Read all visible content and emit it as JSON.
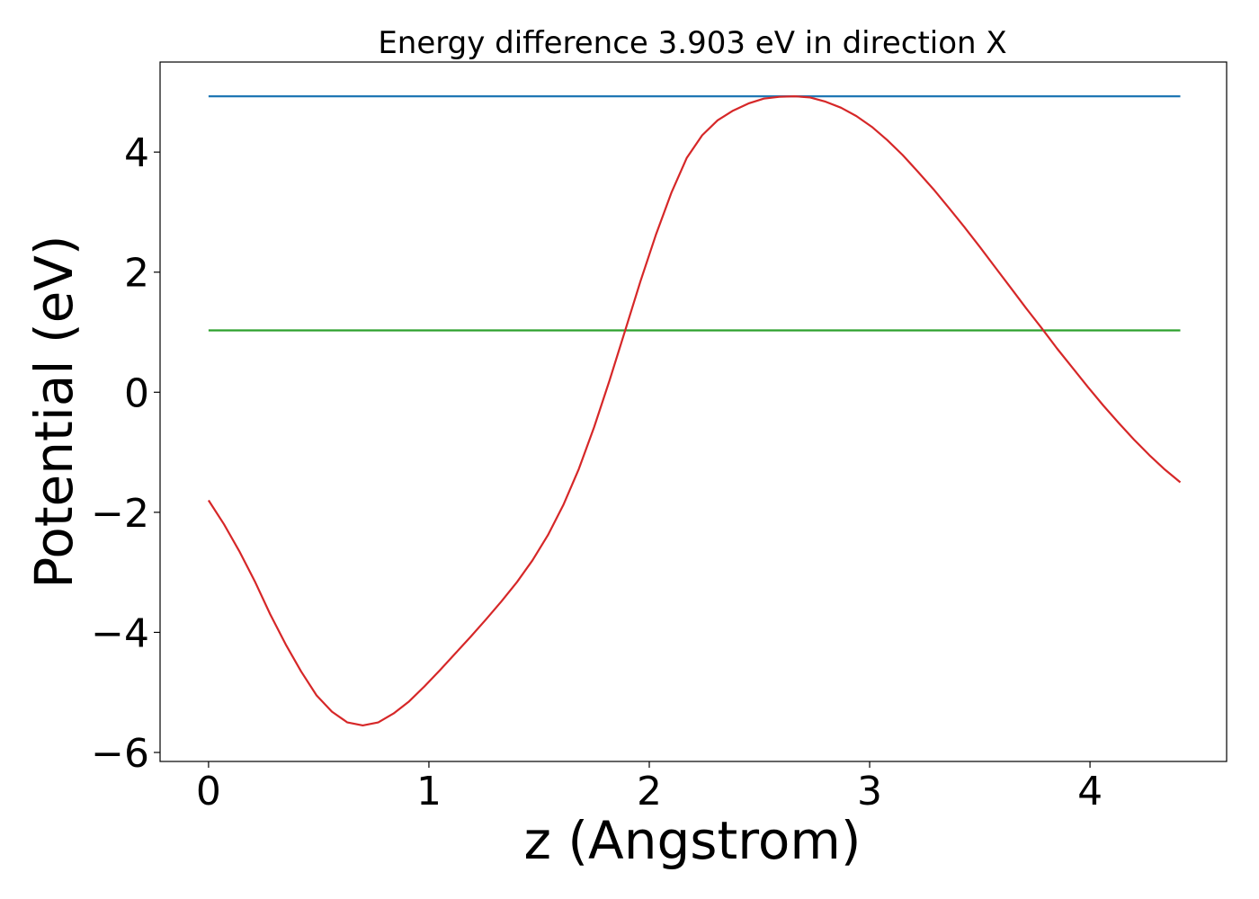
{
  "chart_data": {
    "type": "line",
    "title": "Energy difference 3.903 eV in direction X",
    "xlabel": "z (Angstrom)",
    "ylabel": "Potential (eV)",
    "xlim": [
      -0.22,
      4.62
    ],
    "ylim": [
      -6.15,
      5.5
    ],
    "xticks": [
      0,
      1,
      2,
      3,
      4
    ],
    "xtick_labels": [
      "0",
      "1",
      "2",
      "3",
      "4"
    ],
    "yticks": [
      -6,
      -4,
      -2,
      0,
      2,
      4
    ],
    "ytick_labels": [
      "−6",
      "−4",
      "−2",
      "0",
      "2",
      "4"
    ],
    "grid": false,
    "series": [
      {
        "color": "#1f77b4",
        "x": [
          0,
          4.41
        ],
        "y": [
          4.93,
          4.93
        ]
      },
      {
        "color": "#2ca02c",
        "x": [
          0,
          4.41
        ],
        "y": [
          1.03,
          1.03
        ]
      },
      {
        "color": "#d62728",
        "x": [
          0,
          0.07,
          0.14,
          0.21,
          0.28,
          0.35,
          0.42,
          0.49,
          0.56,
          0.63,
          0.7,
          0.77,
          0.84,
          0.91,
          0.98,
          1.05,
          1.12,
          1.19,
          1.26,
          1.33,
          1.4,
          1.47,
          1.54,
          1.61,
          1.68,
          1.75,
          1.82,
          1.89,
          1.96,
          2.03,
          2.1,
          2.17,
          2.24,
          2.31,
          2.38,
          2.45,
          2.52,
          2.59,
          2.66,
          2.73,
          2.8,
          2.87,
          2.94,
          3.01,
          3.08,
          3.15,
          3.22,
          3.29,
          3.36,
          3.43,
          3.5,
          3.57,
          3.64,
          3.71,
          3.78,
          3.85,
          3.92,
          3.99,
          4.06,
          4.13,
          4.2,
          4.27,
          4.34,
          4.41
        ],
        "y": [
          -1.8,
          -2.2,
          -2.65,
          -3.15,
          -3.7,
          -4.2,
          -4.65,
          -5.05,
          -5.32,
          -5.5,
          -5.55,
          -5.5,
          -5.35,
          -5.15,
          -4.9,
          -4.63,
          -4.35,
          -4.07,
          -3.78,
          -3.48,
          -3.16,
          -2.8,
          -2.38,
          -1.88,
          -1.28,
          -0.58,
          0.2,
          1.02,
          1.85,
          2.62,
          3.32,
          3.9,
          4.28,
          4.53,
          4.69,
          4.81,
          4.89,
          4.92,
          4.93,
          4.91,
          4.84,
          4.74,
          4.6,
          4.42,
          4.2,
          3.95,
          3.67,
          3.38,
          3.07,
          2.75,
          2.42,
          2.08,
          1.74,
          1.4,
          1.07,
          0.73,
          0.41,
          0.09,
          -0.22,
          -0.51,
          -0.79,
          -1.05,
          -1.29,
          -1.5
        ]
      }
    ]
  }
}
